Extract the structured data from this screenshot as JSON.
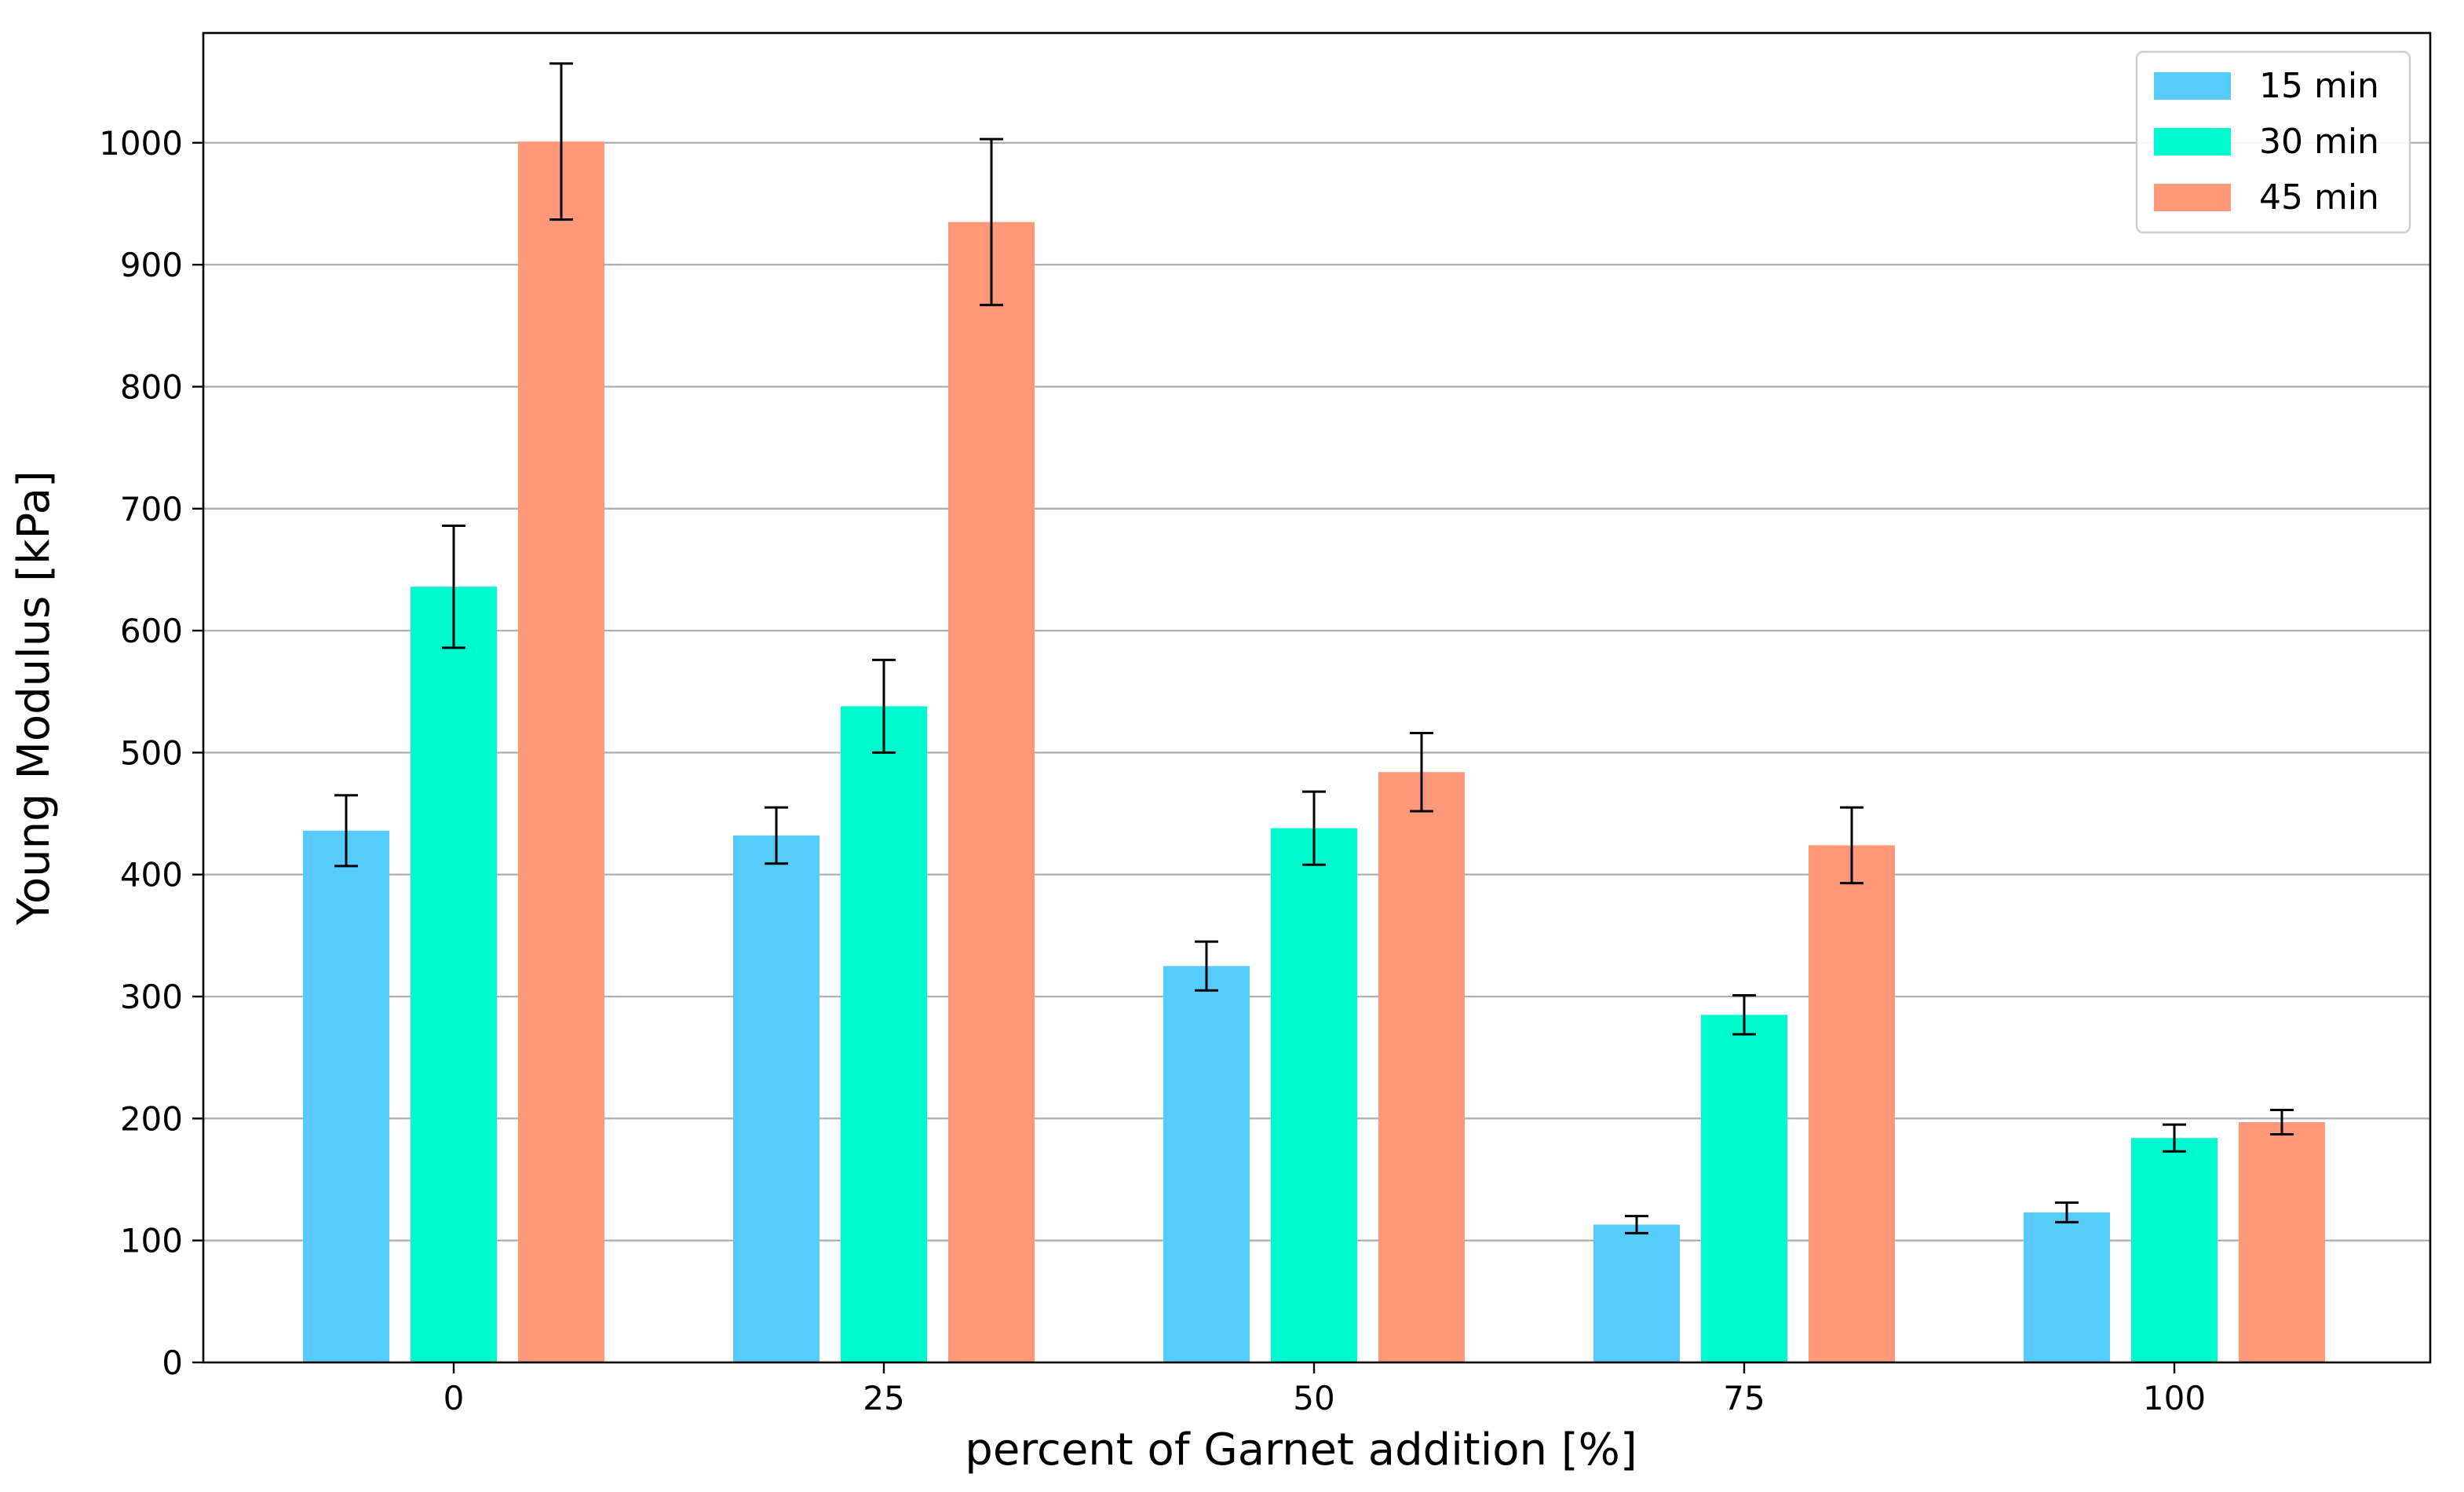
{
  "chart_data": {
    "type": "bar",
    "title": "",
    "xlabel": "percent of Garnet addition [%]",
    "ylabel": "Young Modulus [kPa]",
    "categories": [
      "0",
      "25",
      "50",
      "75",
      "100"
    ],
    "ylim": [
      0,
      1090
    ],
    "yticks": [
      0,
      100,
      200,
      300,
      400,
      500,
      600,
      700,
      800,
      900,
      1000
    ],
    "grid": "horizontal",
    "legend_position": "top-right",
    "series": [
      {
        "name": "15 min",
        "color": "#56CCFC",
        "values": [
          436,
          432,
          325,
          113,
          123
        ],
        "errors": [
          29,
          23,
          20,
          7,
          8
        ]
      },
      {
        "name": "30 min",
        "color": "#00FAD0",
        "values": [
          636,
          538,
          438,
          285,
          184
        ],
        "errors": [
          50,
          38,
          30,
          16,
          11
        ]
      },
      {
        "name": "45 min",
        "color": "#FD9878",
        "values": [
          1001,
          935,
          484,
          424,
          197
        ],
        "errors": [
          64,
          68,
          32,
          31,
          10
        ]
      }
    ]
  }
}
